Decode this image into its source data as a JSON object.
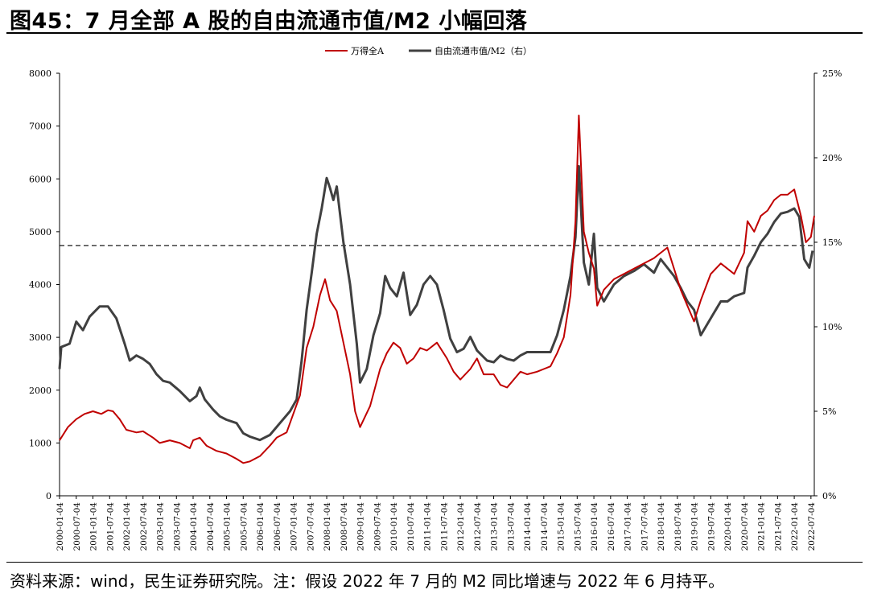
{
  "title": "图45：7 月全部 A 股的自由流通市值/M2 小幅回落",
  "source": "资料来源：wind，民生证券研究院。注：假设 2022 年 7 月的 M2 同比增速与 2022 年 6 月持平。",
  "chart_data": {
    "type": "line",
    "legend_position": "top-center",
    "grid": false,
    "y_left": {
      "min": 0,
      "max": 8000,
      "ticks": [
        "0",
        "1000",
        "2000",
        "3000",
        "4000",
        "5000",
        "6000",
        "7000",
        "8000"
      ]
    },
    "y_right": {
      "min": 0,
      "max": 25,
      "ticks": [
        "0%",
        "5%",
        "10%",
        "15%",
        "20%",
        "25%"
      ]
    },
    "reference_line": {
      "axis": "right",
      "value": 14.8,
      "style": "dashed",
      "color": "#000000"
    },
    "x_tick_labels": [
      "2000-01-04",
      "2000-07-04",
      "2001-01-04",
      "2001-07-04",
      "2002-01-04",
      "2002-07-04",
      "2003-01-04",
      "2003-07-04",
      "2004-01-04",
      "2004-07-04",
      "2005-01-04",
      "2005-07-04",
      "2006-01-04",
      "2006-07-04",
      "2007-01-04",
      "2007-07-04",
      "2008-01-04",
      "2008-07-04",
      "2009-01-04",
      "2009-07-04",
      "2010-01-04",
      "2010-07-04",
      "2011-01-04",
      "2011-07-04",
      "2012-01-04",
      "2012-07-04",
      "2013-01-04",
      "2013-07-04",
      "2014-01-04",
      "2014-07-04",
      "2015-01-04",
      "2015-07-04",
      "2016-01-04",
      "2016-07-04",
      "2017-01-04",
      "2017-07-04",
      "2018-01-04",
      "2018-07-04",
      "2019-01-04",
      "2019-07-04",
      "2020-01-04",
      "2020-07-04",
      "2021-01-04",
      "2021-07-04",
      "2022-01-04",
      "2022-07-04"
    ],
    "series": [
      {
        "name": "万得全A",
        "axis": "left",
        "color": "#c00000",
        "x": [
          2000.0,
          2000.25,
          2000.5,
          2000.75,
          2001.0,
          2001.25,
          2001.45,
          2001.6,
          2001.8,
          2002.0,
          2002.3,
          2002.5,
          2002.8,
          2003.0,
          2003.3,
          2003.6,
          2003.9,
          2004.0,
          2004.2,
          2004.4,
          2004.7,
          2005.0,
          2005.3,
          2005.5,
          2005.7,
          2006.0,
          2006.3,
          2006.5,
          2006.8,
          2007.0,
          2007.2,
          2007.4,
          2007.6,
          2007.8,
          2007.95,
          2008.1,
          2008.3,
          2008.5,
          2008.7,
          2008.85,
          2009.0,
          2009.3,
          2009.6,
          2009.8,
          2010.0,
          2010.2,
          2010.4,
          2010.6,
          2010.8,
          2011.0,
          2011.3,
          2011.6,
          2011.8,
          2012.0,
          2012.3,
          2012.5,
          2012.7,
          2013.0,
          2013.2,
          2013.4,
          2013.6,
          2013.8,
          2014.0,
          2014.3,
          2014.5,
          2014.7,
          2014.9,
          2015.1,
          2015.3,
          2015.45,
          2015.55,
          2015.7,
          2015.85,
          2016.0,
          2016.1,
          2016.3,
          2016.6,
          2016.9,
          2017.2,
          2017.5,
          2017.8,
          2018.0,
          2018.2,
          2018.4,
          2018.6,
          2018.8,
          2019.0,
          2019.2,
          2019.5,
          2019.8,
          2020.0,
          2020.2,
          2020.5,
          2020.6,
          2020.8,
          2021.0,
          2021.2,
          2021.4,
          2021.6,
          2021.8,
          2022.0,
          2022.2,
          2022.35,
          2022.5,
          2022.6
        ],
        "y": [
          1050,
          1300,
          1450,
          1550,
          1600,
          1550,
          1620,
          1600,
          1450,
          1250,
          1200,
          1220,
          1100,
          1000,
          1050,
          1000,
          900,
          1050,
          1100,
          950,
          850,
          800,
          700,
          620,
          650,
          750,
          950,
          1100,
          1200,
          1550,
          1900,
          2800,
          3200,
          3800,
          4100,
          3700,
          3500,
          2900,
          2300,
          1600,
          1300,
          1700,
          2400,
          2700,
          2900,
          2800,
          2500,
          2600,
          2800,
          2750,
          2900,
          2600,
          2350,
          2200,
          2400,
          2600,
          2300,
          2300,
          2100,
          2050,
          2200,
          2350,
          2300,
          2350,
          2400,
          2450,
          2700,
          3000,
          3800,
          5200,
          7200,
          5000,
          4600,
          4300,
          3600,
          3900,
          4100,
          4200,
          4300,
          4400,
          4500,
          4600,
          4700,
          4300,
          3900,
          3600,
          3300,
          3700,
          4200,
          4400,
          4300,
          4200,
          4600,
          5200,
          5000,
          5300,
          5400,
          5600,
          5700,
          5700,
          5800,
          5300,
          4800,
          4900,
          5300
        ]
      },
      {
        "name": "自由流通市值/M2（右）",
        "axis": "right",
        "color": "#404040",
        "x": [
          2000.0,
          2000.05,
          2000.3,
          2000.5,
          2000.7,
          2000.9,
          2001.2,
          2001.45,
          2001.7,
          2001.95,
          2002.1,
          2002.3,
          2002.5,
          2002.7,
          2002.9,
          2003.1,
          2003.3,
          2003.6,
          2003.9,
          2004.1,
          2004.2,
          2004.35,
          2004.6,
          2004.8,
          2005.0,
          2005.3,
          2005.5,
          2005.7,
          2006.0,
          2006.3,
          2006.6,
          2006.9,
          2007.1,
          2007.25,
          2007.4,
          2007.55,
          2007.7,
          2007.85,
          2008.0,
          2008.1,
          2008.2,
          2008.3,
          2008.5,
          2008.7,
          2008.9,
          2009.0,
          2009.2,
          2009.4,
          2009.6,
          2009.75,
          2009.9,
          2010.1,
          2010.3,
          2010.5,
          2010.7,
          2010.9,
          2011.1,
          2011.3,
          2011.5,
          2011.7,
          2011.9,
          2012.1,
          2012.3,
          2012.5,
          2012.8,
          2013.0,
          2013.2,
          2013.4,
          2013.6,
          2013.8,
          2014.0,
          2014.3,
          2014.5,
          2014.7,
          2014.9,
          2015.1,
          2015.3,
          2015.45,
          2015.55,
          2015.7,
          2015.85,
          2016.0,
          2016.1,
          2016.3,
          2016.6,
          2016.9,
          2017.2,
          2017.5,
          2017.8,
          2018.0,
          2018.2,
          2018.4,
          2018.6,
          2018.8,
          2019.0,
          2019.2,
          2019.5,
          2019.8,
          2020.0,
          2020.2,
          2020.5,
          2020.6,
          2020.8,
          2021.0,
          2021.2,
          2021.4,
          2021.6,
          2021.8,
          2022.0,
          2022.15,
          2022.3,
          2022.45,
          2022.55
        ],
        "y": [
          7.5,
          8.8,
          9.0,
          10.3,
          9.8,
          10.6,
          11.2,
          11.2,
          10.5,
          9.0,
          8.0,
          8.3,
          8.1,
          7.8,
          7.2,
          6.8,
          6.7,
          6.2,
          5.6,
          5.9,
          6.4,
          5.7,
          5.1,
          4.7,
          4.5,
          4.3,
          3.7,
          3.5,
          3.3,
          3.6,
          4.3,
          5.0,
          5.7,
          8.0,
          11.0,
          13.2,
          15.5,
          17.0,
          18.8,
          18.2,
          17.5,
          18.3,
          15.0,
          12.5,
          9.0,
          6.7,
          7.5,
          9.5,
          10.8,
          13.0,
          12.3,
          11.8,
          13.2,
          10.7,
          11.3,
          12.5,
          13.0,
          12.5,
          11.0,
          9.3,
          8.5,
          8.7,
          9.4,
          8.6,
          8.0,
          7.9,
          8.3,
          8.1,
          8.0,
          8.3,
          8.5,
          8.5,
          8.5,
          8.5,
          9.5,
          11.0,
          13.0,
          15.3,
          19.5,
          13.8,
          12.5,
          15.5,
          12.3,
          11.5,
          12.5,
          13.0,
          13.3,
          13.7,
          13.2,
          14.0,
          13.5,
          13.0,
          12.3,
          11.5,
          11.0,
          9.5,
          10.5,
          11.5,
          11.5,
          11.8,
          12.0,
          13.5,
          14.2,
          15.0,
          15.5,
          16.2,
          16.7,
          16.8,
          17.0,
          16.5,
          14.0,
          13.5,
          14.5
        ]
      }
    ]
  }
}
